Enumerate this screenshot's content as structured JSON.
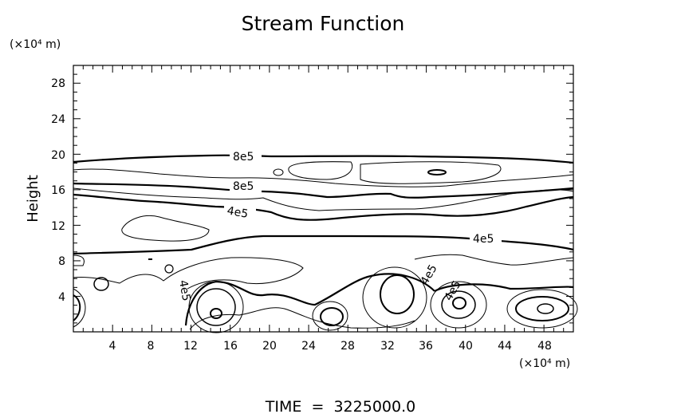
{
  "chart_data": {
    "type": "contour",
    "title": "Stream Function",
    "ylabel": "Height",
    "xunit": "(×10⁴ m)",
    "yunit": "(×10⁴ m)",
    "xlim": [
      0,
      51
    ],
    "ylim": [
      0,
      30
    ],
    "xticks": [
      "4",
      "8",
      "12",
      "16",
      "20",
      "24",
      "28",
      "32",
      "36",
      "40",
      "44",
      "48"
    ],
    "yticks": [
      "4",
      "8",
      "12",
      "16",
      "20",
      "24",
      "28"
    ],
    "xtick_values": [
      4,
      8,
      12,
      16,
      20,
      24,
      28,
      32,
      36,
      40,
      44,
      48
    ],
    "ytick_values": [
      4,
      8,
      12,
      16,
      20,
      24,
      28
    ],
    "contour_labels": [
      {
        "text": "8e5",
        "x": 18.3,
        "y": 19.6
      },
      {
        "text": "8e5",
        "x": 18.3,
        "y": 16.2
      },
      {
        "text": "4e5",
        "x": 17.6,
        "y": 13.1
      },
      {
        "text": "4e5",
        "x": 40.5,
        "y": 10.3
      },
      {
        "text": "4e5",
        "x": 35.5,
        "y": 6.5
      },
      {
        "text": "4e5",
        "x": 38.5,
        "y": 4.5
      },
      {
        "text": "4e5",
        "x": 11.8,
        "y": 4.4
      }
    ],
    "grid": false
  },
  "time_label": "TIME  =  3225000.0"
}
